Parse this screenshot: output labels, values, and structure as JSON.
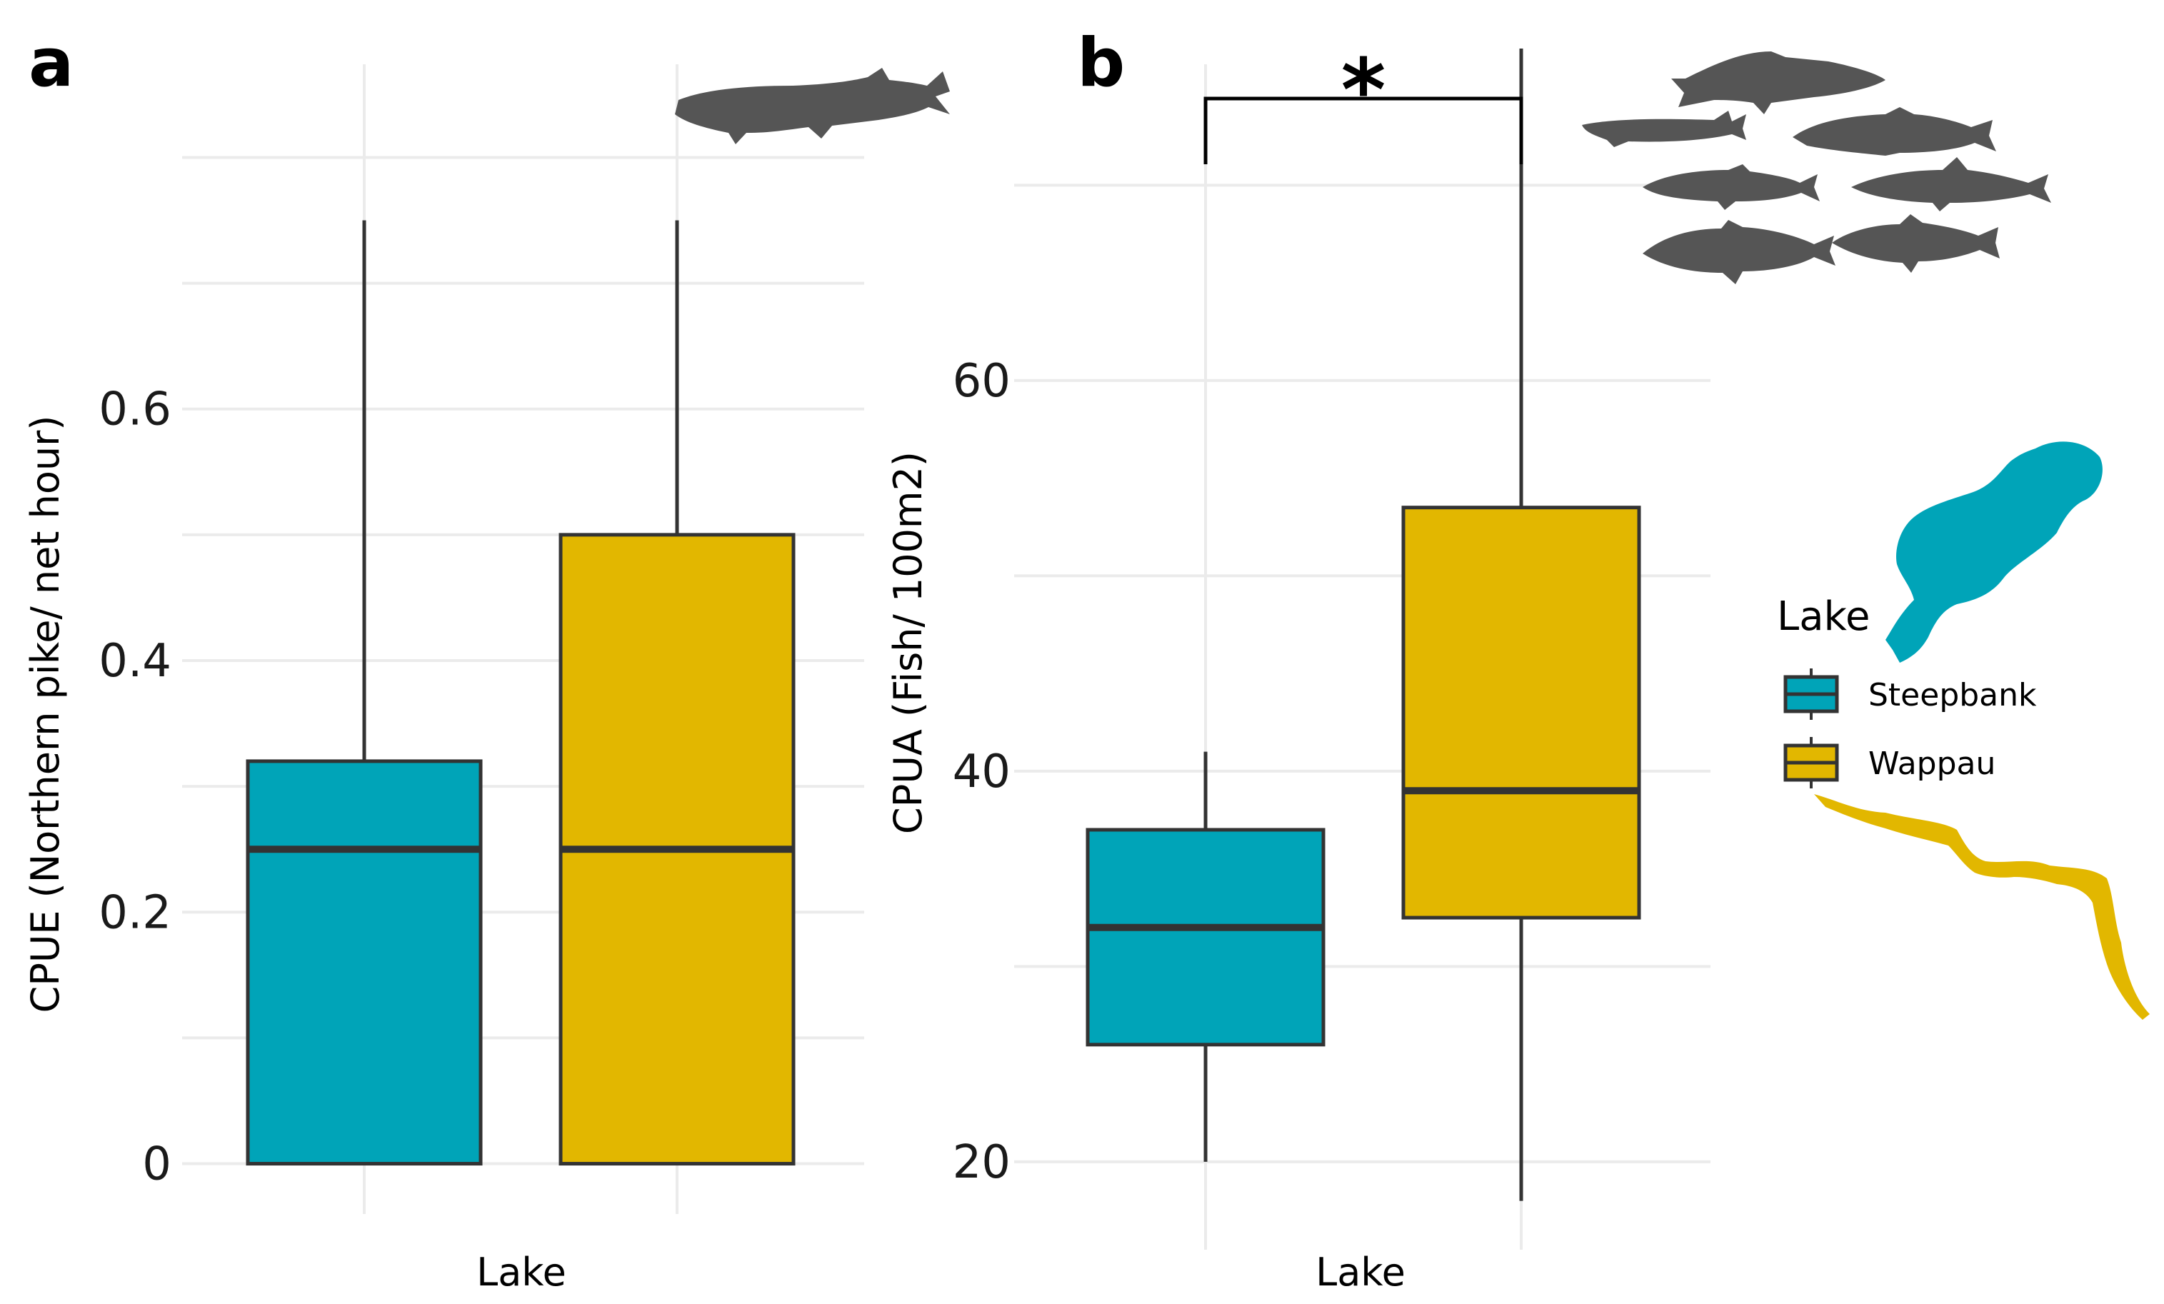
{
  "colors": {
    "Steepbank": "#00A4B8",
    "Wappau": "#E2B700",
    "outline": "#333333",
    "grid": "#EBEBEB",
    "silhouette": "#555555"
  },
  "legend": {
    "title": "Lake",
    "entries": [
      "Steepbank",
      "Wappau"
    ]
  },
  "chart_data": [
    {
      "panel": "a",
      "type": "boxplot",
      "xlabel": "Lake",
      "ylabel": "CPUE (Northern pike/ net hour)",
      "ylim": [
        -0.04,
        0.84
      ],
      "yticks": [
        0,
        0.2,
        0.4,
        0.6
      ],
      "ytick_labels": [
        "0",
        "0.2",
        "0.4",
        "0.6"
      ],
      "boxes": [
        {
          "group": "Steepbank",
          "min": 0,
          "q1": 0,
          "median": 0.25,
          "q3": 0.32,
          "max": 0.75
        },
        {
          "group": "Wappau",
          "min": 0,
          "q1": 0,
          "median": 0.25,
          "q3": 0.5,
          "max": 0.75
        }
      ]
    },
    {
      "panel": "b",
      "type": "boxplot",
      "xlabel": "Lake",
      "ylabel": "CPUA (Fish/ 100m2)",
      "ylim": [
        15.5,
        74
      ],
      "yticks": [
        20,
        40,
        60
      ],
      "ytick_labels": [
        "20",
        "40",
        "60"
      ],
      "boxes": [
        {
          "group": "Steepbank",
          "min": 20,
          "q1": 26,
          "median": 32,
          "q3": 37,
          "max": 41
        },
        {
          "group": "Wappau",
          "min": 18,
          "q1": 32.5,
          "median": 39,
          "q3": 53.5,
          "max": 77
        }
      ],
      "significance": {
        "label": "*",
        "from": "Steepbank",
        "to": "Wappau"
      }
    }
  ]
}
